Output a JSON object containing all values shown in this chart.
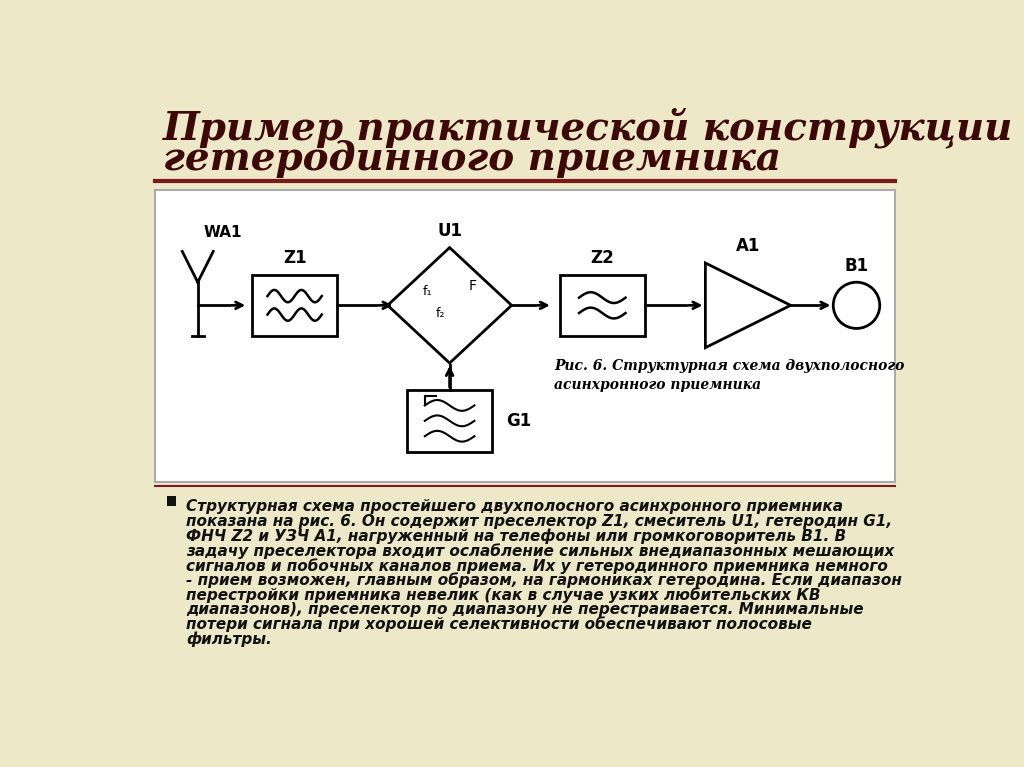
{
  "title_line1": "Пример практической конструкции",
  "title_line2": "гетеродинного приемника",
  "bg_color": "#ede8c8",
  "diagram_bg": "#ffffff",
  "title_color": "#3d0808",
  "body_text_color": "#111111",
  "caption_text": "Рис. 6. Структурная схема двухполосного\nасинхронного приемника",
  "bullet_text_lines": [
    "Структурная схема простейшего двухполосного асинхронного приемника",
    "показана на рис. 6. Он содержит преселектор Z1, смеситель U1, гетеродин G1,",
    "ФНЧ Z2 и УЗЧ A1, нагруженный на телефоны или громкоговоритель B1. В",
    "задачу преселектора входит ослабление сильных внедиапазонных мешающих",
    "сигналов и побочных каналов приема. Их у гетеродинного приемника немного",
    "- прием возможен, главным образом, на гармониках гетеродина. Если диапазон",
    "перестройки приемника невелик (как в случае узких любительских КВ",
    "диапазонов), преселектор по диапазону не перестраивается. Минимальные",
    "потери сигнала при хорошей селективности обеспечивают полосовые",
    "фильтры."
  ],
  "block_line_color": "#000000",
  "block_fill_color": "#ffffff",
  "sep_color": "#7a1a1a"
}
